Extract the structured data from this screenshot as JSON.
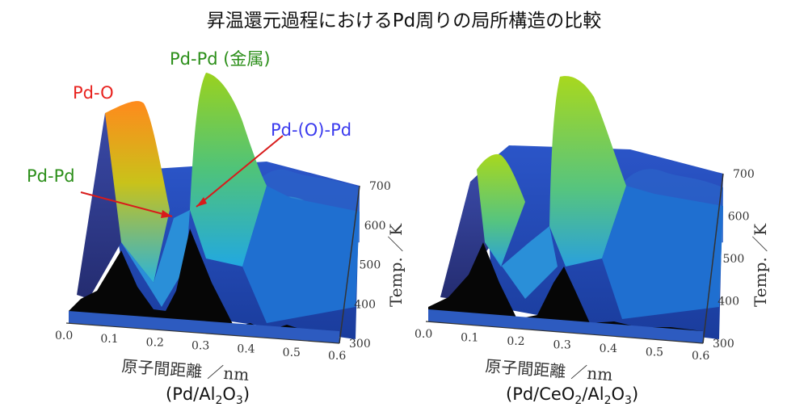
{
  "page": {
    "title": "昇温還元過程におけるPd周りの局所構造の比較"
  },
  "chart_data": [
    {
      "type": "surface3d",
      "caption": {
        "pre": "(Pd/Al",
        "s1": "2",
        "mid": "O",
        "s2": "3",
        "post": ")"
      },
      "xlabel": "原子間距離 ／nm",
      "xticks": [
        "0.0",
        "0.1",
        "0.2",
        "0.3",
        "0.4",
        "0.5",
        "0.6"
      ],
      "zlabel": "Temp. ／K",
      "zticks": [
        "300",
        "400",
        "500",
        "600",
        "700"
      ],
      "annotations": [
        {
          "text": "Pd-O",
          "color": "#e8221e"
        },
        {
          "text": "Pd-Pd (金属)",
          "color": "#2c8f1a"
        },
        {
          "text": "Pd-(O)-Pd",
          "color": "#3a3aee"
        },
        {
          "text": "Pd-Pd",
          "color": "#2c8f1a"
        }
      ]
    },
    {
      "type": "surface3d",
      "caption": {
        "pre": "(Pd/CeO",
        "s1": "2",
        "mid": "/Al",
        "s2": "2",
        "mid2": "O",
        "s3": "3",
        "post": ")"
      },
      "xlabel": "原子間距離 ／nm",
      "xticks": [
        "0.0",
        "0.1",
        "0.2",
        "0.3",
        "0.4",
        "0.5",
        "0.6"
      ],
      "zlabel": "Temp. ／K",
      "zticks": [
        "300",
        "400",
        "500",
        "600",
        "700"
      ]
    }
  ]
}
